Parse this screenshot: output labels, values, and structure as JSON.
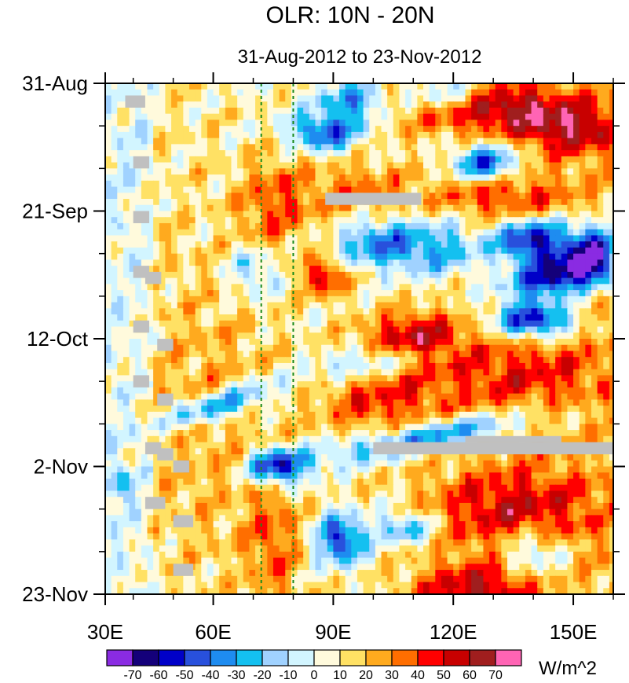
{
  "chart_data": {
    "type": "heatmap",
    "title": "OLR: 10N - 20N",
    "subtitle": "31-Aug-2012 to 23-Nov-2012",
    "x_axis": {
      "range": [
        33,
        160
      ],
      "ticks": [
        {
          "value": 30,
          "label": "30E"
        },
        {
          "value": 60,
          "label": "60E"
        },
        {
          "value": 90,
          "label": "90E"
        },
        {
          "value": 120,
          "label": "120E"
        },
        {
          "value": 150,
          "label": "150E"
        }
      ],
      "minor_step": 10
    },
    "y_axis": {
      "range_days": [
        0,
        84
      ],
      "start_date": "31-Aug-2012",
      "ticks": [
        {
          "day": 0,
          "label": "31-Aug"
        },
        {
          "day": 21,
          "label": "21-Sep"
        },
        {
          "day": 42,
          "label": "12-Oct"
        },
        {
          "day": 63,
          "label": "2-Nov"
        },
        {
          "day": 84,
          "label": "23-Nov"
        }
      ],
      "minor_step_days": 7
    },
    "reference_lines_lon": [
      72,
      80
    ],
    "reference_line_color": "#1a8a1a",
    "colorbar": {
      "unit_label": "W/m^2",
      "levels": [
        "-70",
        "-60",
        "-50",
        "-40",
        "-30",
        "-20",
        "-10",
        "0",
        "10",
        "20",
        "30",
        "40",
        "50",
        "60",
        "70"
      ],
      "colors": [
        "#8a2be2",
        "#14007a",
        "#0000c8",
        "#2850dc",
        "#1e8cf0",
        "#14c0f0",
        "#a0d2ff",
        "#d2f5ff",
        "#fffadc",
        "#ffe164",
        "#ffaa1e",
        "#ff6e00",
        "#ff0000",
        "#c80000",
        "#a01e1e",
        "#ff64b4"
      ]
    },
    "anomaly_features": [
      {
        "lon": 130,
        "day": 4,
        "value": 50,
        "slope": 0,
        "rlon": 22,
        "rday": 4
      },
      {
        "lon": 150,
        "day": 8,
        "value": 40,
        "slope": 0,
        "rlon": 14,
        "rday": 4
      },
      {
        "lon": 133,
        "day": 19,
        "value": 30,
        "slope": 0,
        "rlon": 18,
        "rday": 4
      },
      {
        "lon": 95,
        "day": 18,
        "value": 25,
        "slope": 0,
        "rlon": 14,
        "rday": 5
      },
      {
        "lon": 75,
        "day": 20,
        "value": 28,
        "slope": 0,
        "rlon": 9,
        "rday": 8
      },
      {
        "lon": 95,
        "day": 3,
        "value": -45,
        "slope": 0,
        "rlon": 8,
        "rday": 3
      },
      {
        "lon": 88,
        "day": 8,
        "value": -55,
        "slope": 0,
        "rlon": 9,
        "rday": 3
      },
      {
        "lon": 118,
        "day": 2,
        "value": -40,
        "slope": 0,
        "rlon": 10,
        "rday": 3
      },
      {
        "lon": 128,
        "day": 13,
        "value": -60,
        "slope": 0,
        "rlon": 8,
        "rday": 3
      },
      {
        "lon": 140,
        "day": 26,
        "value": -75,
        "slope": 0,
        "rlon": 9,
        "rday": 4
      },
      {
        "lon": 155,
        "day": 28,
        "value": -72,
        "slope": 0,
        "rlon": 7,
        "rday": 5
      },
      {
        "lon": 145,
        "day": 32,
        "value": -75,
        "slope": -0.15,
        "rlon": 11,
        "rday": 3
      },
      {
        "lon": 140,
        "day": 39,
        "value": -75,
        "slope": 0,
        "rlon": 10,
        "rday": 3
      },
      {
        "lon": 115,
        "day": 27,
        "value": -40,
        "slope": 0,
        "rlon": 13,
        "rday": 5
      },
      {
        "lon": 100,
        "day": 26,
        "value": -38,
        "slope": 0,
        "rlon": 9,
        "rday": 4
      },
      {
        "lon": 88,
        "day": 32,
        "value": 45,
        "slope": 0,
        "rlon": 5,
        "rday": 3
      },
      {
        "lon": 110,
        "day": 42,
        "value": 48,
        "slope": 0,
        "rlon": 11,
        "rday": 4
      },
      {
        "lon": 135,
        "day": 48,
        "value": 30,
        "slope": 0,
        "rlon": 25,
        "rday": 8
      },
      {
        "lon": 100,
        "day": 52,
        "value": 30,
        "slope": 0,
        "rlon": 15,
        "rday": 6
      },
      {
        "lon": 62,
        "day": 53,
        "value": -50,
        "slope": -0.2,
        "rlon": 14,
        "rday": 2.5
      },
      {
        "lon": 115,
        "day": 58,
        "value": -50,
        "slope": -0.12,
        "rlon": 28,
        "rday": 2.5
      },
      {
        "lon": 100,
        "day": 46,
        "value": -40,
        "slope": -0.12,
        "rlon": 15,
        "rday": 2.5
      },
      {
        "lon": 76,
        "day": 63,
        "value": -72,
        "slope": 0,
        "rlon": 7,
        "rday": 3
      },
      {
        "lon": 135,
        "day": 70,
        "value": 40,
        "slope": 0,
        "rlon": 22,
        "rday": 7
      },
      {
        "lon": 125,
        "day": 83,
        "value": 45,
        "slope": 0,
        "rlon": 15,
        "rday": 4
      },
      {
        "lon": 92,
        "day": 75,
        "value": -62,
        "slope": 0,
        "rlon": 6,
        "rday": 4
      },
      {
        "lon": 108,
        "day": 73,
        "value": -42,
        "slope": 0,
        "rlon": 7,
        "rday": 3
      },
      {
        "lon": 140,
        "day": 77,
        "value": -35,
        "slope": 0,
        "rlon": 8,
        "rday": 4
      },
      {
        "lon": 75,
        "day": 76,
        "value": 25,
        "slope": 0,
        "rlon": 7,
        "rday": 12
      },
      {
        "lon": 60,
        "day": 55,
        "value": 15,
        "slope": 0,
        "rlon": 18,
        "rday": 25
      },
      {
        "lon": 37,
        "day": 66,
        "value": -25,
        "slope": 0,
        "rlon": 4,
        "rday": 3
      },
      {
        "lon": 70,
        "day": 31,
        "value": -30,
        "slope": 0,
        "rlon": 6,
        "rday": 4
      }
    ],
    "missing_data": [
      {
        "lon0": 38,
        "lon1": 43,
        "day0": 2,
        "day1": 4
      },
      {
        "lon0": 40,
        "lon1": 44,
        "day0": 12,
        "day1": 14
      },
      {
        "lon0": 40,
        "lon1": 44,
        "day0": 21,
        "day1": 23
      },
      {
        "lon0": 40,
        "lon1": 44,
        "day0": 30,
        "day1": 32
      },
      {
        "lon0": 43,
        "lon1": 47,
        "day0": 31,
        "day1": 33
      },
      {
        "lon0": 40,
        "lon1": 44,
        "day0": 39,
        "day1": 41
      },
      {
        "lon0": 46,
        "lon1": 50,
        "day0": 42,
        "day1": 44
      },
      {
        "lon0": 40,
        "lon1": 44,
        "day0": 48,
        "day1": 50
      },
      {
        "lon0": 46,
        "lon1": 50,
        "day0": 51,
        "day1": 53
      },
      {
        "lon0": 43,
        "lon1": 47,
        "day0": 59,
        "day1": 61
      },
      {
        "lon0": 46,
        "lon1": 50,
        "day0": 60,
        "day1": 62
      },
      {
        "lon0": 50,
        "lon1": 54,
        "day0": 62,
        "day1": 64
      },
      {
        "lon0": 43,
        "lon1": 48,
        "day0": 68,
        "day1": 70
      },
      {
        "lon0": 50,
        "lon1": 55,
        "day0": 71,
        "day1": 73
      },
      {
        "lon0": 50,
        "lon1": 55,
        "day0": 79,
        "day1": 81
      },
      {
        "lon0": 88,
        "lon1": 112,
        "day0": 18,
        "day1": 20
      },
      {
        "lon0": 100,
        "lon1": 160,
        "day0": 59,
        "day1": 61
      },
      {
        "lon0": 123,
        "lon1": 147,
        "day0": 58,
        "day1": 59
      }
    ]
  }
}
